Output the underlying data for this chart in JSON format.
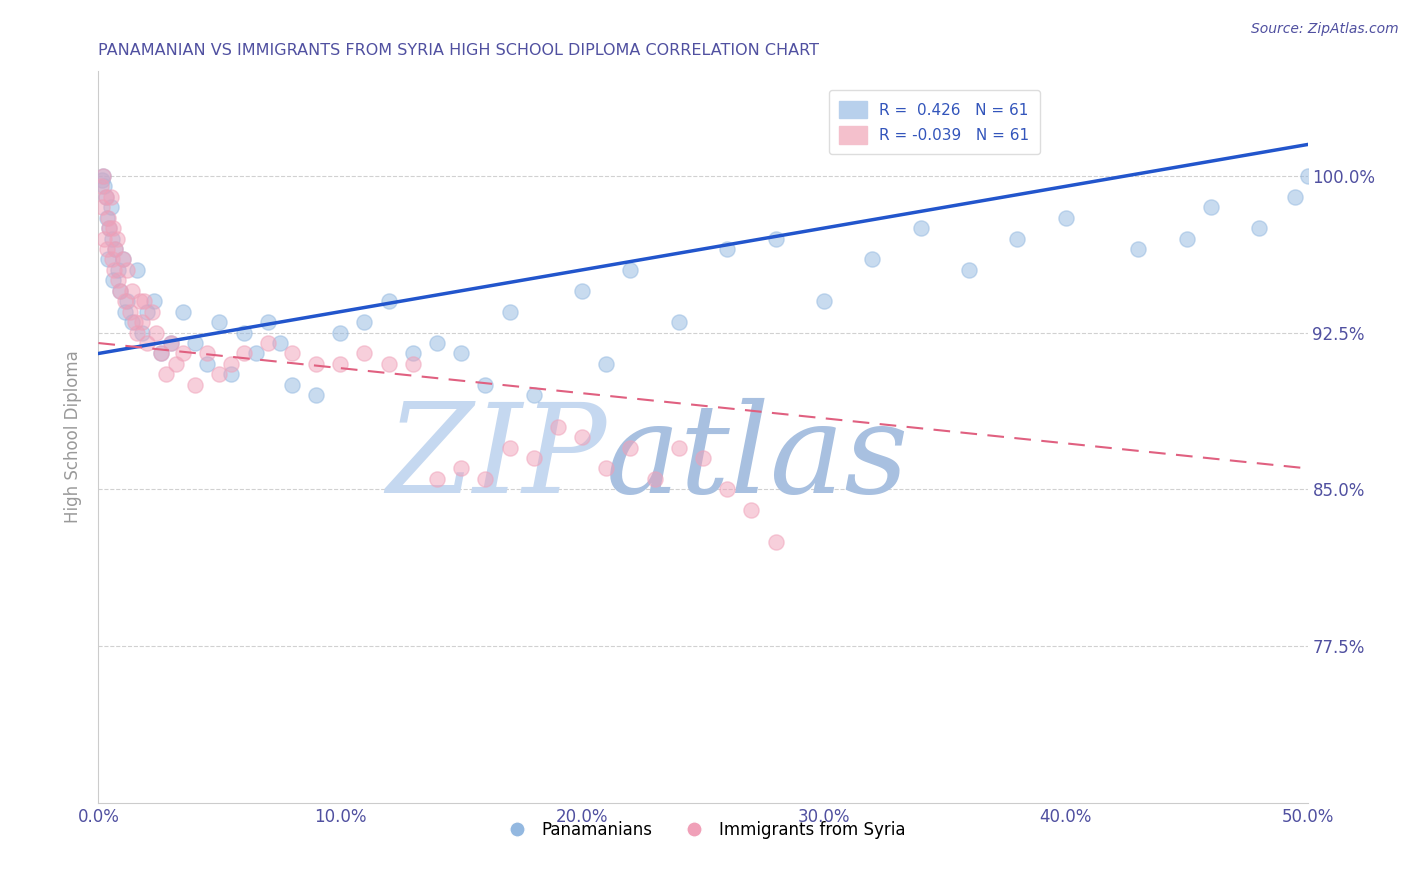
{
  "title": "PANAMANIAN VS IMMIGRANTS FROM SYRIA HIGH SCHOOL DIPLOMA CORRELATION CHART",
  "source": "Source: ZipAtlas.com",
  "ylabel": "High School Diploma",
  "xlim": [
    0.0,
    50.0
  ],
  "ylim": [
    70.0,
    105.0
  ],
  "x_ticks": [
    0,
    10,
    20,
    30,
    40,
    50
  ],
  "y_ticks": [
    77.5,
    85.0,
    92.5,
    100.0
  ],
  "blue_color": "#93b8e0",
  "pink_color": "#f0a0b8",
  "blue_line_color": "#2255cc",
  "pink_line_color": "#e06080",
  "title_color": "#5050a0",
  "source_color": "#5050a0",
  "tick_color": "#5050a0",
  "ylabel_color": "#999999",
  "watermark_zip_color": "#c8d8f0",
  "watermark_atlas_color": "#b0c8e8",
  "r_blue": 0.426,
  "r_pink": -0.039,
  "n": 61,
  "legend1_blue_label": "R =  0.426   N = 61",
  "legend1_pink_label": "R = -0.039   N = 61",
  "legend2_blue_label": "Panamanians",
  "legend2_pink_label": "Immigrants from Syria",
  "blue_x": [
    0.15,
    0.2,
    0.25,
    0.3,
    0.35,
    0.4,
    0.45,
    0.5,
    0.55,
    0.6,
    0.7,
    0.8,
    0.9,
    1.0,
    1.1,
    1.2,
    1.4,
    1.6,
    1.8,
    2.0,
    2.3,
    2.6,
    3.0,
    3.5,
    4.0,
    4.5,
    5.0,
    5.5,
    6.0,
    6.5,
    7.0,
    7.5,
    8.0,
    9.0,
    10.0,
    11.0,
    12.0,
    13.0,
    14.0,
    15.0,
    16.0,
    17.0,
    18.0,
    20.0,
    21.0,
    22.0,
    24.0,
    26.0,
    28.0,
    30.0,
    32.0,
    34.0,
    36.0,
    38.0,
    40.0,
    43.0,
    45.0,
    46.0,
    48.0,
    49.5,
    50.0
  ],
  "blue_y": [
    99.8,
    100.0,
    99.5,
    99.0,
    98.0,
    96.0,
    97.5,
    98.5,
    97.0,
    95.0,
    96.5,
    95.5,
    94.5,
    96.0,
    93.5,
    94.0,
    93.0,
    95.5,
    92.5,
    93.5,
    94.0,
    91.5,
    92.0,
    93.5,
    92.0,
    91.0,
    93.0,
    90.5,
    92.5,
    91.5,
    93.0,
    92.0,
    90.0,
    89.5,
    92.5,
    93.0,
    94.0,
    91.5,
    92.0,
    91.5,
    90.0,
    93.5,
    89.5,
    94.5,
    91.0,
    95.5,
    93.0,
    96.5,
    97.0,
    94.0,
    96.0,
    97.5,
    95.5,
    97.0,
    98.0,
    96.5,
    97.0,
    98.5,
    97.5,
    99.0,
    100.0
  ],
  "pink_x": [
    0.1,
    0.15,
    0.2,
    0.25,
    0.3,
    0.35,
    0.4,
    0.45,
    0.5,
    0.55,
    0.6,
    0.65,
    0.7,
    0.75,
    0.8,
    0.9,
    1.0,
    1.1,
    1.2,
    1.3,
    1.4,
    1.5,
    1.6,
    1.7,
    1.8,
    1.9,
    2.0,
    2.2,
    2.4,
    2.6,
    2.8,
    3.0,
    3.5,
    4.0,
    4.5,
    5.0,
    5.5,
    6.0,
    7.0,
    8.0,
    9.0,
    10.0,
    11.0,
    12.0,
    13.0,
    14.0,
    15.0,
    16.0,
    17.0,
    18.0,
    19.0,
    20.0,
    21.0,
    22.0,
    23.0,
    24.0,
    25.0,
    26.0,
    27.0,
    28.0,
    3.2
  ],
  "pink_y": [
    99.5,
    98.5,
    100.0,
    97.0,
    99.0,
    96.5,
    98.0,
    97.5,
    99.0,
    96.0,
    97.5,
    95.5,
    96.5,
    97.0,
    95.0,
    94.5,
    96.0,
    94.0,
    95.5,
    93.5,
    94.5,
    93.0,
    92.5,
    94.0,
    93.0,
    94.0,
    92.0,
    93.5,
    92.5,
    91.5,
    90.5,
    92.0,
    91.5,
    90.0,
    91.5,
    90.5,
    91.0,
    91.5,
    92.0,
    91.5,
    91.0,
    91.0,
    91.5,
    91.0,
    91.0,
    85.5,
    86.0,
    85.5,
    87.0,
    86.5,
    88.0,
    87.5,
    86.0,
    87.0,
    85.5,
    87.0,
    86.5,
    85.0,
    84.0,
    82.5,
    91.0
  ]
}
